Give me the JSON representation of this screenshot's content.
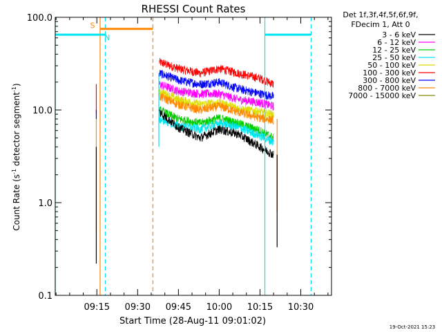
{
  "chart_data": {
    "type": "line",
    "title": "RHESSI Count Rates",
    "xlabel": "Start Time (28-Aug-11 09:01:02)",
    "ylabel": "Count Rate (s",
    "ylabel_sup": "-1",
    "ylabel_mid": " detector segment",
    "ylabel_sup2": "-1",
    "ylabel_end": ")",
    "y_scale": "log",
    "ylim": [
      0.1,
      100.0
    ],
    "y_ticks": [
      {
        "value": 100.0,
        "label": "100.0"
      },
      {
        "value": 10.0,
        "label": "10.0"
      },
      {
        "value": 1.0,
        "label": "1.0"
      },
      {
        "value": 0.1,
        "label": "0.1"
      }
    ],
    "xlim_minutes_after_0900": [
      -0.3,
      101.3
    ],
    "x_ticks": [
      {
        "minute": 15,
        "label": "09:15"
      },
      {
        "minute": 30,
        "label": "09:30"
      },
      {
        "minute": 45,
        "label": "09:45"
      },
      {
        "minute": 60,
        "label": "10:00"
      },
      {
        "minute": 75,
        "label": "10:15"
      },
      {
        "minute": 90,
        "label": "10:30"
      }
    ],
    "legend": {
      "placement": "right",
      "header": [
        "Det 1f,3f,4f,5f,6f,9f,",
        "FDecim 1, Att 0"
      ],
      "entries": [
        {
          "label": "3 - 6 keV",
          "color": "#000000"
        },
        {
          "label": "6 - 12 keV",
          "color": "#ff00ff"
        },
        {
          "label": "12 - 25 keV",
          "color": "#00cc00"
        },
        {
          "label": "25 - 50 keV",
          "color": "#00e5ee"
        },
        {
          "label": "50 - 100 keV",
          "color": "#dddd00"
        },
        {
          "label": "100 - 300 keV",
          "color": "#ff0000"
        },
        {
          "label": "300 - 800 keV",
          "color": "#0000ff"
        },
        {
          "label": "800 - 7000 keV",
          "color": "#ff8800"
        },
        {
          "label": "7000 - 15000 keV",
          "color": "#8b8b00"
        }
      ]
    },
    "series": [
      {
        "color": "#ff0000",
        "points": [
          [
            38,
            33
          ],
          [
            45,
            28
          ],
          [
            53,
            25
          ],
          [
            60,
            28
          ],
          [
            67,
            25
          ],
          [
            75,
            22
          ],
          [
            80,
            19
          ]
        ]
      },
      {
        "color": "#0000ff",
        "points": [
          [
            38,
            25
          ],
          [
            45,
            21
          ],
          [
            53,
            19
          ],
          [
            60,
            20
          ],
          [
            67,
            17
          ],
          [
            75,
            15
          ],
          [
            80,
            14
          ]
        ]
      },
      {
        "color": "#ff00ff",
        "points": [
          [
            38,
            19
          ],
          [
            45,
            16
          ],
          [
            53,
            15
          ],
          [
            60,
            15
          ],
          [
            67,
            13
          ],
          [
            75,
            12
          ],
          [
            80,
            11
          ]
        ]
      },
      {
        "color": "#dddd00",
        "points": [
          [
            38,
            16
          ],
          [
            45,
            13
          ],
          [
            53,
            11.5
          ],
          [
            60,
            12
          ],
          [
            67,
            10.5
          ],
          [
            75,
            9.5
          ],
          [
            80,
            9
          ]
        ]
      },
      {
        "color": "#ff8800",
        "points": [
          [
            38,
            14
          ],
          [
            45,
            11.5
          ],
          [
            53,
            10
          ],
          [
            60,
            11
          ],
          [
            67,
            9.5
          ],
          [
            75,
            8.2
          ],
          [
            80,
            7.8
          ]
        ]
      },
      {
        "color": "#00cc00",
        "points": [
          [
            38,
            10
          ],
          [
            45,
            8
          ],
          [
            53,
            7.2
          ],
          [
            60,
            8.2
          ],
          [
            67,
            7.2
          ],
          [
            75,
            6
          ],
          [
            80,
            5
          ]
        ]
      },
      {
        "color": "#00e5ee",
        "points": [
          [
            38,
            8
          ],
          [
            45,
            6.8
          ],
          [
            53,
            6.2
          ],
          [
            60,
            7.2
          ],
          [
            67,
            6.5
          ],
          [
            75,
            5.3
          ],
          [
            80,
            4.5
          ]
        ]
      },
      {
        "color": "#000000",
        "points": [
          [
            38,
            9.5
          ],
          [
            45,
            6.5
          ],
          [
            53,
            5
          ],
          [
            60,
            6.2
          ],
          [
            67,
            5.5
          ],
          [
            75,
            4
          ],
          [
            80,
            3.3
          ]
        ]
      }
    ],
    "segments": [
      {
        "color": "#ff0000",
        "x": 14.8,
        "y": [
          9,
          19
        ]
      },
      {
        "color": "#0000ff",
        "x": 14.8,
        "y": [
          8,
          10
        ]
      },
      {
        "color": "#ff8800",
        "x": 14.8,
        "y": [
          0.5,
          8
        ]
      },
      {
        "color": "#000000",
        "x": 14.8,
        "y": [
          0.22,
          4
        ]
      },
      {
        "color": "#00e5ee",
        "x": 37.8,
        "y": [
          4,
          25
        ]
      },
      {
        "color": "#ff8800",
        "x": 81.3,
        "y": [
          0.8,
          8
        ]
      },
      {
        "color": "#000000",
        "x": 81.3,
        "y": [
          0.33,
          3.3
        ]
      }
    ],
    "vertical_lines": [
      {
        "x": -0.3,
        "color": "#00e5ee",
        "style": "solid"
      },
      {
        "x": 16.2,
        "color": "#ff8800",
        "style": "solid"
      },
      {
        "x": 18.1,
        "color": "#00e5ee",
        "style": "dashed"
      },
      {
        "x": 35.6,
        "color": "#ff8800",
        "style": "dashed"
      },
      {
        "x": 76.8,
        "color": "#00e5ee",
        "style": "solid"
      },
      {
        "x": 93.8,
        "color": "#00e5ee",
        "style": "dashed"
      }
    ],
    "horizontal_bars": [
      {
        "x": [
          -0.3,
          18.1
        ],
        "y": 65,
        "color": "#00e5ee",
        "label": "N",
        "label_x": 18.8
      },
      {
        "x": [
          16.2,
          35.6
        ],
        "y": 75,
        "color": "#ff8800",
        "label": "S",
        "label_x": 13.4
      },
      {
        "x": [
          76.8,
          93.8
        ],
        "y": 65,
        "color": "#00e5ee",
        "label": "",
        "label_x": 0
      }
    ]
  },
  "footer_timestamp": "19-Oct-2021 15:23"
}
